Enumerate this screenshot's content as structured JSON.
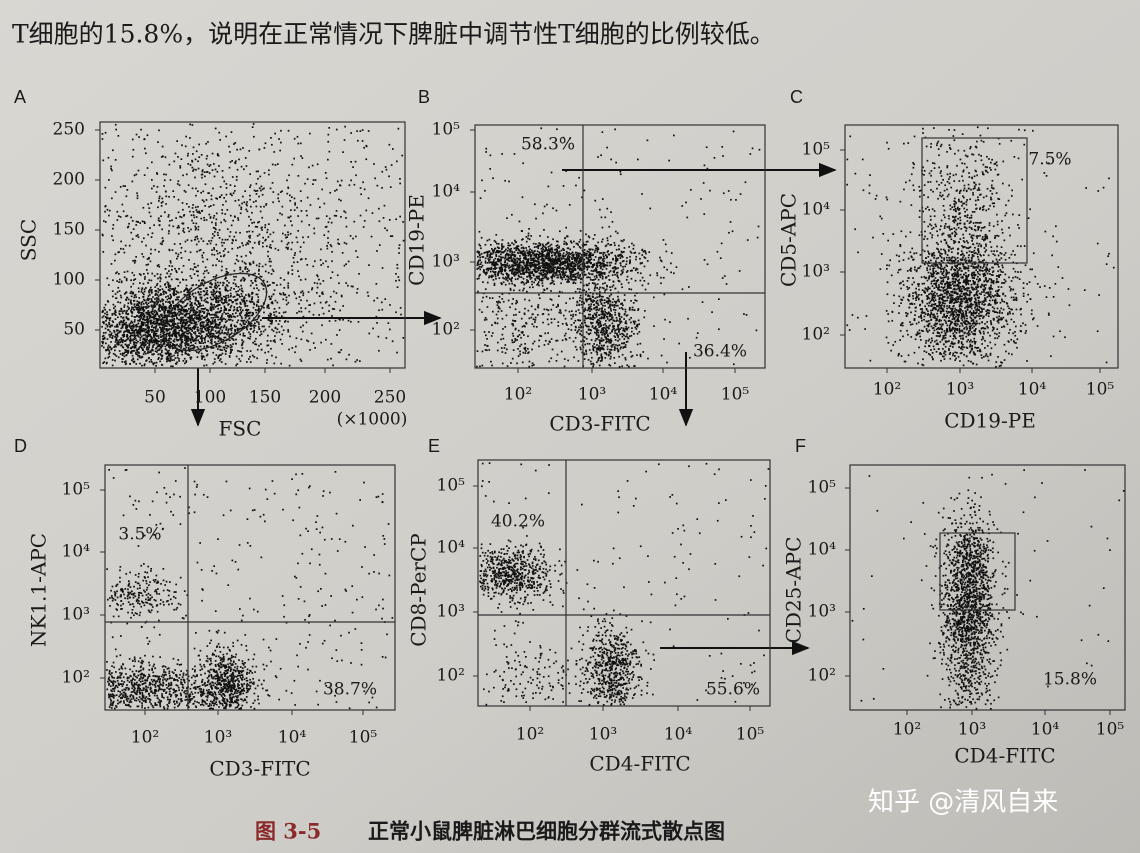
{
  "header": {
    "text": "T细胞的15.8%，说明在正常情况下脾脏中调节性T细胞的比例较低。"
  },
  "panels": [
    {
      "label": "A",
      "x_label": "FSC",
      "y_label": "SSC",
      "x_unit": "(×1000)",
      "x_ticks": [
        "50",
        "100",
        "150",
        "200",
        "250"
      ],
      "y_ticks": [
        "250",
        "200",
        "150",
        "100",
        "50"
      ],
      "percents": []
    },
    {
      "label": "B",
      "x_label": "CD3-FITC",
      "y_label": "CD19-PE",
      "x_ticks": [
        "10²",
        "10³",
        "10⁴",
        "10⁵"
      ],
      "y_ticks": [
        "10⁵",
        "10⁴",
        "10³",
        "10²"
      ],
      "percents": [
        "58.3%",
        "36.4%"
      ]
    },
    {
      "label": "C",
      "x_label": "CD19-PE",
      "y_label": "CD5-APC",
      "x_ticks": [
        "10²",
        "10³",
        "10⁴",
        "10⁵"
      ],
      "y_ticks": [
        "10⁵",
        "10⁴",
        "10³",
        "10²"
      ],
      "percents": [
        "7.5%"
      ]
    },
    {
      "label": "D",
      "x_label": "CD3-FITC",
      "y_label": "NK1.1-APC",
      "x_ticks": [
        "10²",
        "10³",
        "10⁴",
        "10⁵"
      ],
      "y_ticks": [
        "10⁵",
        "10⁴",
        "10³",
        "10²"
      ],
      "percents": [
        "3.5%",
        "38.7%"
      ]
    },
    {
      "label": "E",
      "x_label": "CD4-FITC",
      "y_label": "CD8-PerCP",
      "x_ticks": [
        "10²",
        "10³",
        "10⁴",
        "10⁵"
      ],
      "y_ticks": [
        "10⁵",
        "10⁴",
        "10³",
        "10²"
      ],
      "percents": [
        "40.2%",
        "55.6%"
      ]
    },
    {
      "label": "F",
      "x_label": "CD4-FITC",
      "y_label": "CD25-APC",
      "x_ticks": [
        "10²",
        "10³",
        "10⁴",
        "10⁵"
      ],
      "y_ticks": [
        "10⁵",
        "10⁴",
        "10³",
        "10²"
      ],
      "percents": [
        "15.8%"
      ]
    }
  ],
  "caption": {
    "number": "图 3-5",
    "text": "正常小鼠脾脏淋巴细胞分群流式散点图"
  },
  "watermark": "知乎 @清风自来"
}
